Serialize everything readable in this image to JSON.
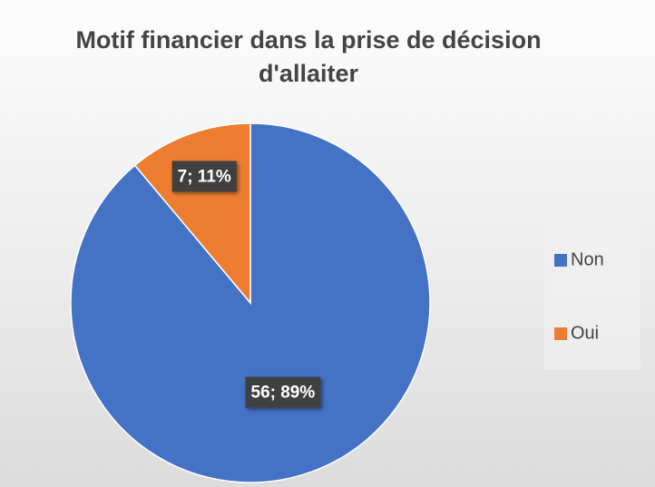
{
  "chart_data": {
    "type": "pie",
    "title": "Motif financier dans la prise de décision d'allaiter",
    "categories": [
      "Non",
      "Oui"
    ],
    "values": [
      56,
      7
    ],
    "value_labels": [
      "56; 89%",
      "7; 11%"
    ],
    "colors": [
      "#4472c4",
      "#ed7d31"
    ],
    "legend": "right"
  }
}
